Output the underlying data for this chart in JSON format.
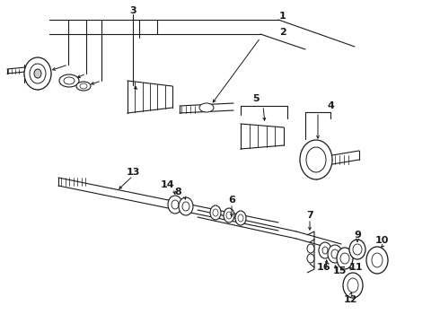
{
  "bg": "#ffffff",
  "lc": "#1a1a1a",
  "fig_w": 4.9,
  "fig_h": 3.6,
  "dpi": 100,
  "label_fs": 8,
  "ann_fs": 7
}
